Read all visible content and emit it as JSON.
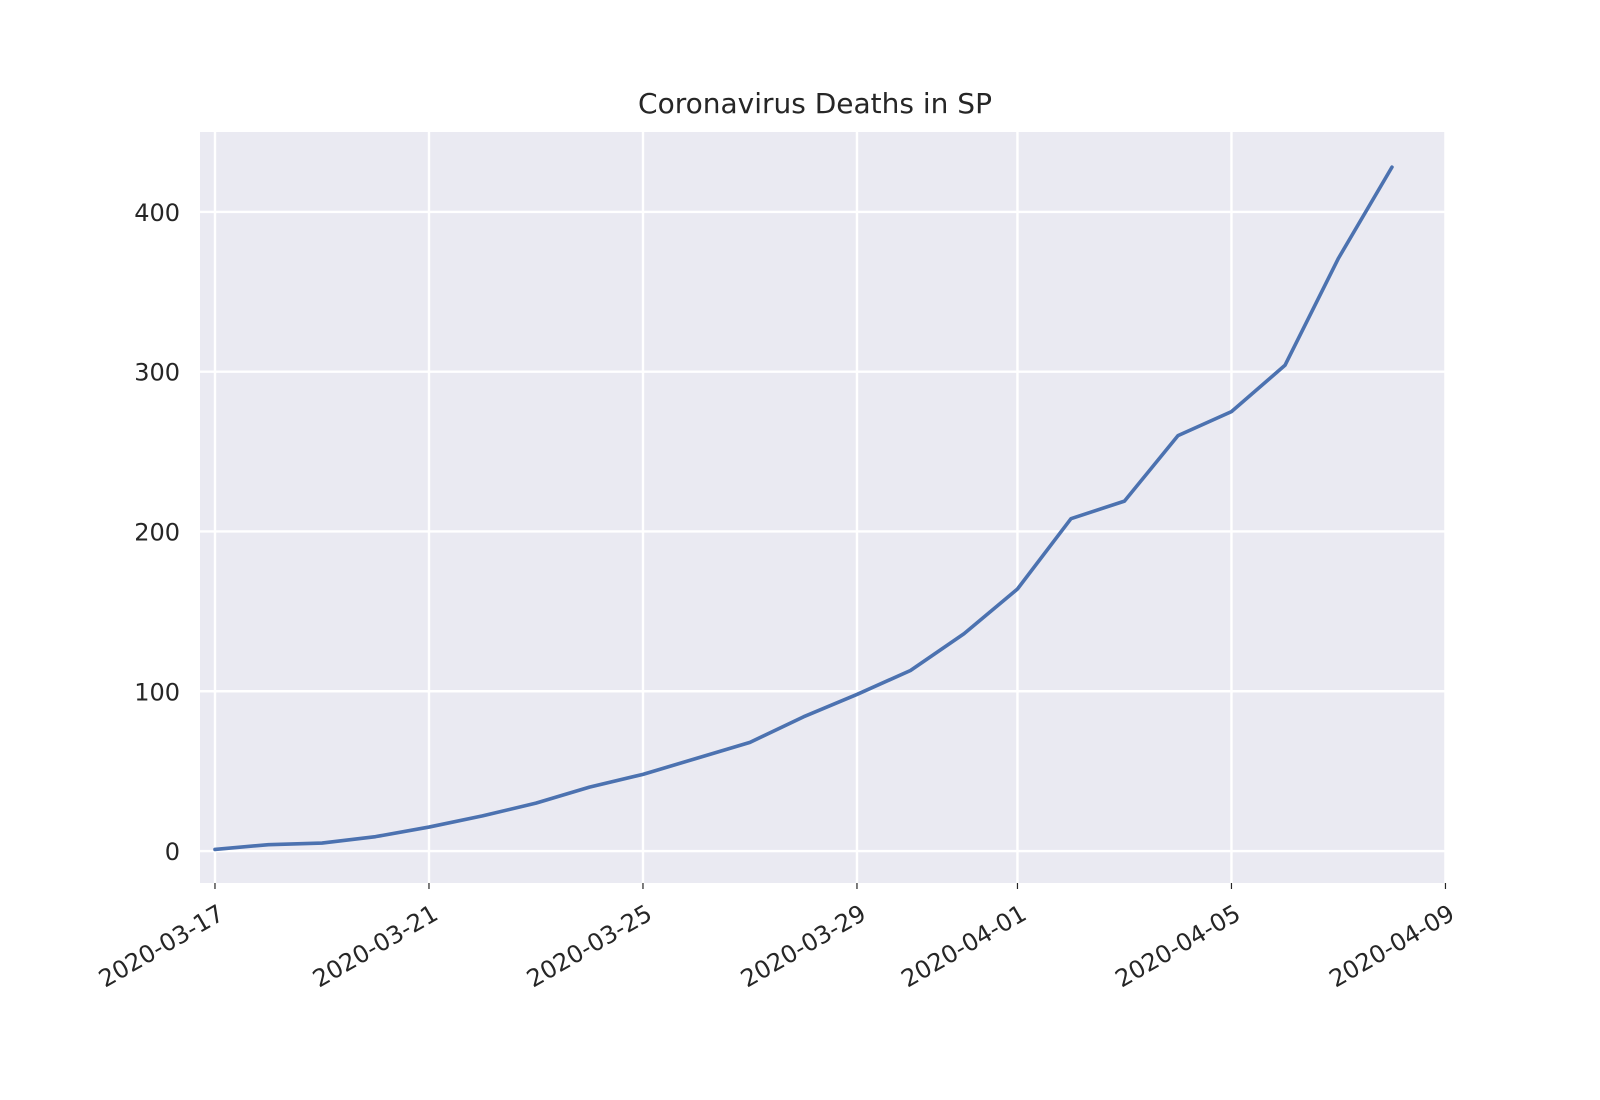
{
  "chart_data": {
    "type": "line",
    "title": "Coronavirus Deaths in SP",
    "xlabel": "",
    "ylabel": "",
    "grid": true,
    "legend": "none",
    "colors": {
      "background": "#eaeaf2",
      "line": "#4c72b0",
      "grid": "#ffffff",
      "text": "#262626"
    },
    "xlim": [
      "2020-03-16",
      "2020-04-09"
    ],
    "ylim": [
      -20,
      450
    ],
    "x_ticks": [
      "2020-03-17",
      "2020-03-21",
      "2020-03-25",
      "2020-03-29",
      "2020-04-01",
      "2020-04-05",
      "2020-04-09"
    ],
    "y_ticks": [
      0,
      100,
      200,
      300,
      400
    ],
    "series": [
      {
        "name": "",
        "x": [
          "2020-03-17",
          "2020-03-18",
          "2020-03-19",
          "2020-03-20",
          "2020-03-21",
          "2020-03-22",
          "2020-03-23",
          "2020-03-24",
          "2020-03-25",
          "2020-03-26",
          "2020-03-27",
          "2020-03-28",
          "2020-03-29",
          "2020-03-30",
          "2020-03-31",
          "2020-04-01",
          "2020-04-02",
          "2020-04-03",
          "2020-04-04",
          "2020-04-05",
          "2020-04-06",
          "2020-04-07",
          "2020-04-08"
        ],
        "values": [
          1,
          4,
          5,
          9,
          15,
          22,
          30,
          40,
          48,
          58,
          68,
          84,
          98,
          113,
          136,
          164,
          208,
          219,
          260,
          275,
          304,
          371,
          428
        ]
      }
    ]
  }
}
